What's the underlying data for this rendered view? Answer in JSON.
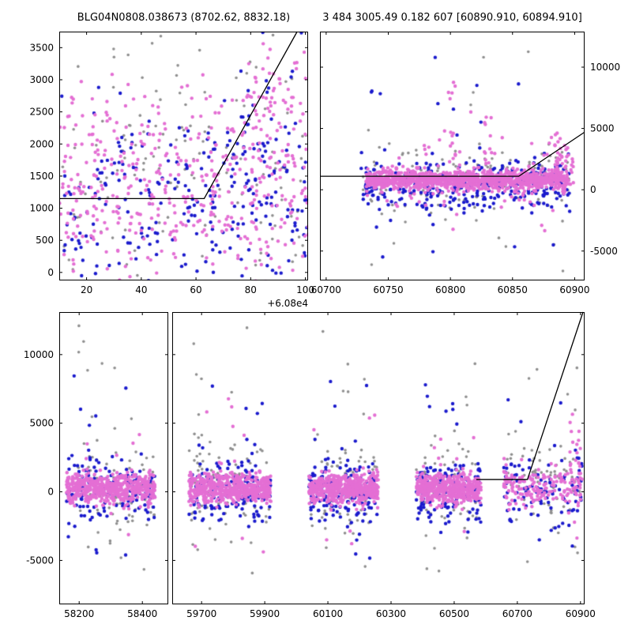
{
  "figure": {
    "title_left": "BLG04N0808.038673 (8702.62, 8832.18)",
    "title_right": "3 484 3005.49 0.182 607 [60890.910, 60894.910]",
    "background": "#ffffff",
    "axis_color": "#000000"
  },
  "chart_data": {
    "type": "scatter",
    "description": "Three-panel light-curve scatter figure: top-left zoom (flux vs time, x offset +6.08e4), top-right recent season with model line, bottom broken-axis full light curve with five seasonal clusters and rising model line at right.",
    "palette": {
      "magenta": "#e46fd4",
      "blue": "#1a1acd",
      "gray": "#8f8f8f",
      "line": "#000000"
    },
    "panels": [
      {
        "id": "tl",
        "xlim": [
          60810,
          60901
        ],
        "ylim": [
          -125,
          3750
        ],
        "xticks": {
          "values": [
            60820,
            60840,
            60860,
            60880,
            60900
          ],
          "labels": [
            "20",
            "40",
            "60",
            "80",
            "100"
          ]
        },
        "x_offset_label": "+6.08e4",
        "yticks": {
          "values": [
            0,
            500,
            1000,
            1500,
            2000,
            2500,
            3000,
            3500
          ],
          "labels": [
            "0",
            "500",
            "1000",
            "1500",
            "2000",
            "2500",
            "3000",
            "3500"
          ],
          "label_side": "left"
        },
        "line": [
          [
            60810,
            1150
          ],
          [
            60863,
            1150
          ],
          [
            60897,
            3750
          ]
        ],
        "clusters": [
          {
            "color": "gray",
            "n": 120,
            "x": [
              60810,
              60901
            ],
            "y": {
              "type": "normal",
              "mu": 1500,
              "sigma": 850
            }
          },
          {
            "color": "gray",
            "n": 14,
            "x": [
              60812,
              60900
            ],
            "y": {
              "type": "uniform",
              "min": 2900,
              "max": 3720
            }
          },
          {
            "color": "blue",
            "n": 250,
            "x": [
              60810,
              60901
            ],
            "y": {
              "type": "normal",
              "mu": 1050,
              "sigma": 750
            }
          },
          {
            "color": "blue",
            "n": 35,
            "x": [
              60876,
              60901
            ],
            "y": {
              "type": "normal",
              "mu": 2300,
              "sigma": 650
            }
          },
          {
            "color": "magenta",
            "n": 430,
            "x": [
              60810,
              60901
            ],
            "y": {
              "type": "normal",
              "mu": 1350,
              "sigma": 700
            }
          },
          {
            "color": "magenta",
            "n": 55,
            "x": [
              60876,
              60901
            ],
            "y": {
              "type": "normal",
              "mu": 2700,
              "sigma": 550
            }
          }
        ]
      },
      {
        "id": "tr",
        "xlim": [
          60695,
          60908
        ],
        "ylim": [
          -7400,
          12900
        ],
        "xticks": {
          "values": [
            60700,
            60750,
            60800,
            60850,
            60900
          ],
          "labels": [
            "60700",
            "60750",
            "60800",
            "60850",
            "60900"
          ]
        },
        "yticks": {
          "values": [
            -5000,
            0,
            5000,
            10000
          ],
          "labels": [
            "-5000",
            "0",
            "5000",
            "10000"
          ],
          "label_side": "right"
        },
        "line": [
          [
            60695,
            1100
          ],
          [
            60855,
            1100
          ],
          [
            60908,
            4700
          ]
        ],
        "clusters": [
          {
            "color": "gray",
            "n": 130,
            "x": [
              60728,
              60896
            ],
            "y": {
              "type": "normal",
              "mu": 900,
              "sigma": 1400
            }
          },
          {
            "color": "gray",
            "n": 22,
            "x": [
              60735,
              60892
            ],
            "y": {
              "type": "uniform",
              "min": -6900,
              "max": 11900
            }
          },
          {
            "color": "blue",
            "n": 330,
            "x": [
              60728,
              60896
            ],
            "y": {
              "type": "normal",
              "mu": 350,
              "sigma": 1150
            }
          },
          {
            "color": "blue",
            "n": 20,
            "x": [
              60735,
              60890
            ],
            "y": {
              "type": "uniform",
              "min": -5700,
              "max": 10800
            }
          },
          {
            "color": "magenta",
            "n": 1150,
            "x": [
              60732,
              60894
            ],
            "y": {
              "type": "normal",
              "mu": 800,
              "sigma": 400
            }
          },
          {
            "color": "magenta",
            "n": 60,
            "x": [
              60740,
              60892
            ],
            "y": {
              "type": "normal",
              "mu": 800,
              "sigma": 2000
            }
          },
          {
            "color": "magenta",
            "n": 14,
            "x": [
              60798,
              60804
            ],
            "y": {
              "type": "uniform",
              "min": 1500,
              "max": 9600
            }
          },
          {
            "color": "magenta",
            "n": 10,
            "x": [
              60827,
              60833
            ],
            "y": {
              "type": "uniform",
              "min": 1500,
              "max": 6200
            }
          },
          {
            "color": "magenta",
            "n": 50,
            "x": [
              60884,
              60899
            ],
            "y": {
              "type": "normal",
              "mu": 2200,
              "sigma": 1300
            }
          }
        ]
      },
      {
        "id": "b1",
        "xlim": [
          58137,
          58482
        ],
        "ylim": [
          -8200,
          13100
        ],
        "xticks": {
          "values": [
            58200,
            58400
          ],
          "labels": [
            "58200",
            "58400"
          ]
        },
        "yticks": {
          "values": [
            -5000,
            0,
            5000,
            10000
          ],
          "labels": [
            "-5000",
            "0",
            "5000",
            "10000"
          ],
          "label_side": "left"
        },
        "clusters": [
          {
            "color": "gray",
            "n": 75,
            "x": [
              58160,
              58440
            ],
            "y": {
              "type": "normal",
              "mu": 400,
              "sigma": 1700
            }
          },
          {
            "color": "gray",
            "n": 15,
            "x": [
              58170,
              58430
            ],
            "y": {
              "type": "uniform",
              "min": -6300,
              "max": 12400
            }
          },
          {
            "color": "blue",
            "n": 150,
            "x": [
              58160,
              58440
            ],
            "y": {
              "type": "normal",
              "mu": 0,
              "sigma": 1100
            }
          },
          {
            "color": "blue",
            "n": 10,
            "x": [
              58170,
              58430
            ],
            "y": {
              "type": "uniform",
              "min": -5300,
              "max": 8600
            }
          },
          {
            "color": "magenta",
            "n": 550,
            "x": [
              58160,
              58440
            ],
            "y": {
              "type": "normal",
              "mu": 250,
              "sigma": 540
            }
          },
          {
            "color": "magenta",
            "n": 9,
            "x": [
              58175,
              58430
            ],
            "y": {
              "type": "uniform",
              "min": -4300,
              "max": 6600
            }
          }
        ]
      },
      {
        "id": "b2",
        "xlim": [
          59607,
          60913
        ],
        "ylim": [
          -8200,
          13100
        ],
        "xticks": {
          "values": [
            59700,
            59900,
            60100,
            60300,
            60500,
            60700,
            60900
          ],
          "labels": [
            "59700",
            "59900",
            "60100",
            "60300",
            "60500",
            "60700",
            "60900"
          ]
        },
        "yticks": {
          "values": [
            -5000,
            0,
            5000,
            10000
          ],
          "labels": [],
          "label_side": "none"
        },
        "line": [
          [
            60570,
            900
          ],
          [
            60732,
            900
          ],
          [
            60908,
            13100
          ]
        ],
        "clusters": [
          {
            "color": "gray",
            "n": 80,
            "x": [
              59660,
              59920
            ],
            "y": {
              "type": "normal",
              "mu": 500,
              "sigma": 1700
            }
          },
          {
            "color": "gray",
            "n": 16,
            "x": [
              59670,
              59910
            ],
            "y": {
              "type": "uniform",
              "min": -6500,
              "max": 12600
            }
          },
          {
            "color": "blue",
            "n": 160,
            "x": [
              59660,
              59920
            ],
            "y": {
              "type": "normal",
              "mu": 0,
              "sigma": 1150
            }
          },
          {
            "color": "blue",
            "n": 12,
            "x": [
              59670,
              59910
            ],
            "y": {
              "type": "uniform",
              "min": -5500,
              "max": 9000
            }
          },
          {
            "color": "magenta",
            "n": 560,
            "x": [
              59660,
              59920
            ],
            "y": {
              "type": "normal",
              "mu": 250,
              "sigma": 540
            }
          },
          {
            "color": "magenta",
            "n": 10,
            "x": [
              59670,
              59910
            ],
            "y": {
              "type": "uniform",
              "min": -4500,
              "max": 6800
            }
          },
          {
            "color": "gray",
            "n": 70,
            "x": [
              60040,
              60260
            ],
            "y": {
              "type": "normal",
              "mu": 400,
              "sigma": 1700
            }
          },
          {
            "color": "gray",
            "n": 14,
            "x": [
              60050,
              60250
            ],
            "y": {
              "type": "uniform",
              "min": -6200,
              "max": 12300
            }
          },
          {
            "color": "blue",
            "n": 150,
            "x": [
              60040,
              60260
            ],
            "y": {
              "type": "normal",
              "mu": 0,
              "sigma": 1150
            }
          },
          {
            "color": "blue",
            "n": 12,
            "x": [
              60050,
              60250
            ],
            "y": {
              "type": "uniform",
              "min": -5200,
              "max": 9800
            }
          },
          {
            "color": "magenta",
            "n": 540,
            "x": [
              60040,
              60260
            ],
            "y": {
              "type": "normal",
              "mu": 250,
              "sigma": 540
            }
          },
          {
            "color": "magenta",
            "n": 10,
            "x": [
              60050,
              60250
            ],
            "y": {
              "type": "uniform",
              "min": -4300,
              "max": 9500
            }
          },
          {
            "color": "gray",
            "n": 65,
            "x": [
              60380,
              60585
            ],
            "y": {
              "type": "normal",
              "mu": 400,
              "sigma": 1600
            }
          },
          {
            "color": "gray",
            "n": 12,
            "x": [
              60390,
              60575
            ],
            "y": {
              "type": "uniform",
              "min": -6800,
              "max": 9500
            }
          },
          {
            "color": "blue",
            "n": 140,
            "x": [
              60380,
              60585
            ],
            "y": {
              "type": "normal",
              "mu": 0,
              "sigma": 1100
            }
          },
          {
            "color": "blue",
            "n": 10,
            "x": [
              60390,
              60575
            ],
            "y": {
              "type": "uniform",
              "min": -5600,
              "max": 8200
            }
          },
          {
            "color": "magenta",
            "n": 520,
            "x": [
              60380,
              60585
            ],
            "y": {
              "type": "normal",
              "mu": 230,
              "sigma": 500
            }
          },
          {
            "color": "magenta",
            "n": 8,
            "x": [
              60390,
              60575
            ],
            "y": {
              "type": "uniform",
              "min": -4200,
              "max": 6500
            }
          },
          {
            "color": "gray",
            "n": 60,
            "x": [
              60655,
              60905
            ],
            "y": {
              "type": "normal",
              "mu": 600,
              "sigma": 1800
            }
          },
          {
            "color": "gray",
            "n": 12,
            "x": [
              60660,
              60900
            ],
            "y": {
              "type": "uniform",
              "min": -7800,
              "max": 9200
            }
          },
          {
            "color": "blue",
            "n": 95,
            "x": [
              60655,
              60905
            ],
            "y": {
              "type": "normal",
              "mu": 200,
              "sigma": 1400
            }
          },
          {
            "color": "blue",
            "n": 8,
            "x": [
              60660,
              60900
            ],
            "y": {
              "type": "uniform",
              "min": -6800,
              "max": 7500
            }
          },
          {
            "color": "magenta",
            "n": 170,
            "x": [
              60655,
              60905
            ],
            "y": {
              "type": "normal",
              "mu": 400,
              "sigma": 700
            }
          },
          {
            "color": "magenta",
            "n": 28,
            "x": [
              60858,
              60902
            ],
            "y": {
              "type": "normal",
              "mu": 2400,
              "sigma": 1500
            }
          },
          {
            "color": "magenta",
            "n": 6,
            "x": [
              60660,
              60900
            ],
            "y": {
              "type": "uniform",
              "min": -3500,
              "max": 6000
            }
          }
        ]
      }
    ]
  }
}
